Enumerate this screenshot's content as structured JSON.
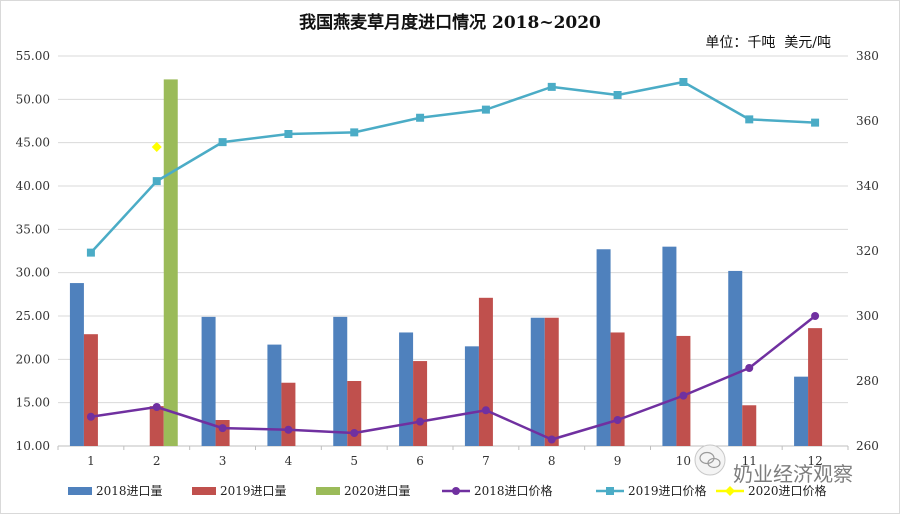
{
  "chart_data": {
    "type": "bar",
    "title": "我国燕麦草月度进口情况 2018~2020",
    "unit_note": "单位：千吨  美元/吨",
    "categories": [
      "1",
      "2",
      "3",
      "4",
      "5",
      "6",
      "7",
      "8",
      "9",
      "10",
      "11",
      "12"
    ],
    "y_left": {
      "min": 10,
      "max": 55,
      "step": 5,
      "ticks": [
        "10.00",
        "15.00",
        "20.00",
        "25.00",
        "30.00",
        "35.00",
        "40.00",
        "45.00",
        "50.00",
        "55.00"
      ]
    },
    "y_right": {
      "min": 260,
      "max": 380,
      "step": 20,
      "ticks": [
        "260",
        "280",
        "300",
        "320",
        "340",
        "360",
        "380"
      ]
    },
    "bar_series": [
      {
        "name": "2018进口量",
        "color": "#4f81bd",
        "axis": "left",
        "values": [
          28.8,
          null,
          24.9,
          21.7,
          24.9,
          23.1,
          21.5,
          24.8,
          32.7,
          33.0,
          30.2,
          18.0
        ]
      },
      {
        "name": "2019进口量",
        "color": "#c0504d",
        "axis": "left",
        "values": [
          22.9,
          14.6,
          13.0,
          17.3,
          17.5,
          19.8,
          27.1,
          24.8,
          23.1,
          22.7,
          14.7,
          23.6
        ]
      },
      {
        "name": "2020进口量",
        "color": "#9bbb59",
        "axis": "left",
        "values": [
          null,
          52.3,
          null,
          null,
          null,
          null,
          null,
          null,
          null,
          null,
          null,
          null
        ]
      }
    ],
    "line_series": [
      {
        "name": "2018进口价格",
        "color": "#7030a0",
        "marker": "circle",
        "axis": "right",
        "values": [
          269,
          272,
          265.5,
          265,
          264,
          267.5,
          271,
          262,
          268,
          275.5,
          284,
          300
        ]
      },
      {
        "name": "2019进口价格",
        "color": "#4bacc6",
        "marker": "square",
        "axis": "right",
        "values": [
          319.5,
          341.5,
          353.5,
          356,
          356.5,
          361,
          363.5,
          370.5,
          368,
          372,
          360.5,
          359.5
        ]
      },
      {
        "name": "2020进口价格",
        "color": "#ffff00",
        "marker": "diamond",
        "axis": "right",
        "values": [
          null,
          352,
          null,
          null,
          null,
          null,
          null,
          null,
          null,
          null,
          null,
          null
        ]
      }
    ],
    "legend": [
      "2018进口量",
      "2019进口量",
      "2020进口量",
      "2018进口价格",
      "2019进口价格",
      "2020进口价格"
    ],
    "legend_position": "bottom",
    "grid": true
  },
  "watermark": {
    "text": "奶业经济观察",
    "icon": "wechat-icon"
  }
}
